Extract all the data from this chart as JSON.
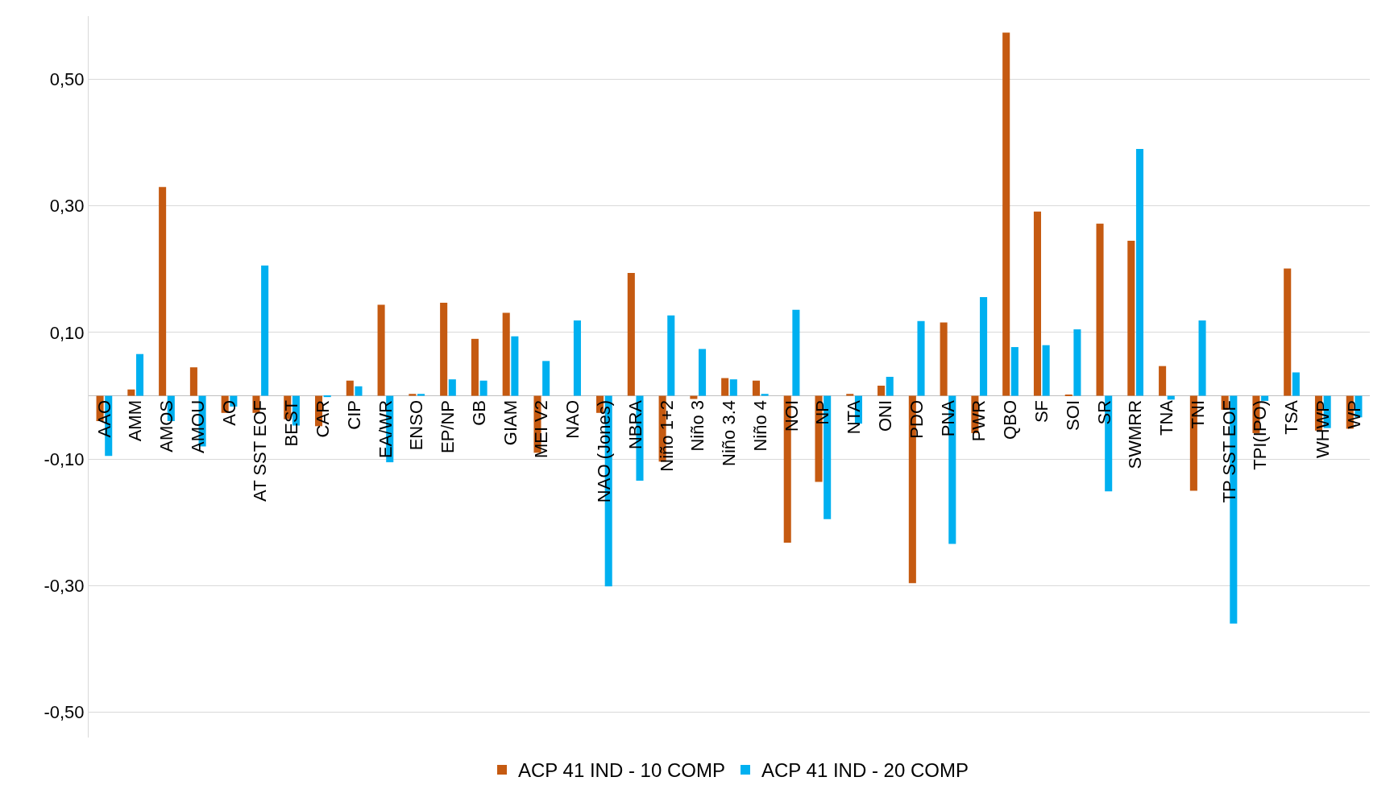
{
  "chart_data": {
    "type": "bar",
    "categories": [
      "AAO",
      "AMM",
      "AMOS",
      "AMOU",
      "AO",
      "AT SST EOF",
      "BEST",
      "CAR",
      "CIP",
      "EA/WR",
      "ENSO",
      "EP/NP",
      "GB",
      "GIAM",
      "MEI V2",
      "NAO",
      "NAO (Jones)",
      "NBRA",
      "Niño 1+2",
      "Niño 3",
      "Niño 3.4",
      "Niño 4",
      "NOI",
      "NP",
      "NTA",
      "ONI",
      "PDO",
      "PNA",
      "PWR",
      "QBO",
      "SF",
      "SOI",
      "SR",
      "SWMRR",
      "TNA",
      "TNI",
      "TP SST EOF",
      "TPI(IPO)",
      "TSA",
      "WHWP",
      "WP"
    ],
    "series": [
      {
        "name": "ACP 41 IND - 10 COMP",
        "color": "#c55a11",
        "values": [
          -0.04,
          0.01,
          0.33,
          0.045,
          -0.027,
          -0.027,
          -0.037,
          -0.048,
          0.024,
          0.144,
          0.003,
          0.147,
          0.09,
          0.131,
          -0.09,
          0,
          -0.027,
          0.194,
          -0.104,
          -0.005,
          0.028,
          0.024,
          -0.232,
          -0.136,
          0.003,
          0.016,
          -0.296,
          0.116,
          -0.059,
          0.574,
          0.291,
          0.002,
          0.272,
          0.245,
          0.047,
          -0.15,
          -0.022,
          -0.059,
          0.201,
          -0.055,
          -0.052
        ]
      },
      {
        "name": "ACP 41 IND - 20 COMP",
        "color": "#00b0f0",
        "values": [
          -0.095,
          0.066,
          -0.04,
          -0.08,
          -0.017,
          0.206,
          -0.047,
          -0.002,
          0.015,
          -0.105,
          0.003,
          0.026,
          0.024,
          0.094,
          0.055,
          0.119,
          -0.301,
          -0.134,
          0.127,
          0.074,
          0.026,
          0.003,
          0.136,
          -0.195,
          -0.044,
          0.03,
          0.118,
          -0.234,
          0.156,
          0.077,
          0.08,
          0.105,
          -0.151,
          0.39,
          -0.006,
          0.119,
          -0.36,
          -0.008,
          0.037,
          -0.051,
          -0.034
        ]
      }
    ],
    "ylim": [
      -0.54,
      0.6
    ],
    "yticks": [
      {
        "value": -0.5,
        "label": "-0,50"
      },
      {
        "value": -0.3,
        "label": "-0,30"
      },
      {
        "value": -0.1,
        "label": "-0,10"
      },
      {
        "value": 0.1,
        "label": "0,10"
      },
      {
        "value": 0.3,
        "label": "0,30"
      },
      {
        "value": 0.5,
        "label": "0,50"
      }
    ],
    "grid": "y",
    "legend": "bottom"
  }
}
